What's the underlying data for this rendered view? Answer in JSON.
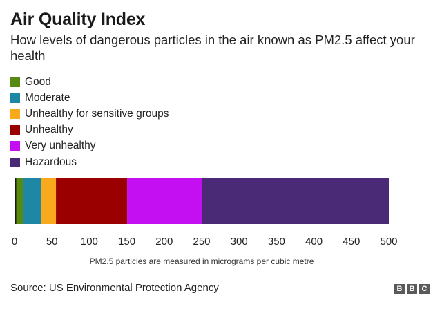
{
  "chart_data": {
    "type": "bar",
    "orientation": "horizontal-stacked-scale",
    "title": "Air Quality Index",
    "subtitle": "How levels of dangerous particles in the air known as PM2.5 affect your health",
    "xlabel": "PM2.5 particles are measured in micrograms per cubic metre",
    "xlim": [
      0,
      500
    ],
    "xticks": [
      0,
      50,
      100,
      150,
      200,
      250,
      300,
      350,
      400,
      450,
      500
    ],
    "legend_position": "top-left",
    "grid": false,
    "series": [
      {
        "name": "Good",
        "start": 0,
        "end": 12,
        "color": "#588a12"
      },
      {
        "name": "Moderate",
        "start": 12,
        "end": 35.4,
        "color": "#1e87a6"
      },
      {
        "name": "Unhealthy for sensitive groups",
        "start": 35.4,
        "end": 55.4,
        "color": "#f9a91c"
      },
      {
        "name": "Unhealthy",
        "start": 55.4,
        "end": 150.4,
        "color": "#9b0000"
      },
      {
        "name": "Very unhealthy",
        "start": 150.4,
        "end": 250.4,
        "color": "#c30ff2"
      },
      {
        "name": "Hazardous",
        "start": 250.4,
        "end": 500,
        "color": "#4a2a76"
      }
    ]
  },
  "footer": {
    "source": "Source: US Environmental Protection Agency",
    "logo_letters": [
      "B",
      "B",
      "C"
    ]
  }
}
